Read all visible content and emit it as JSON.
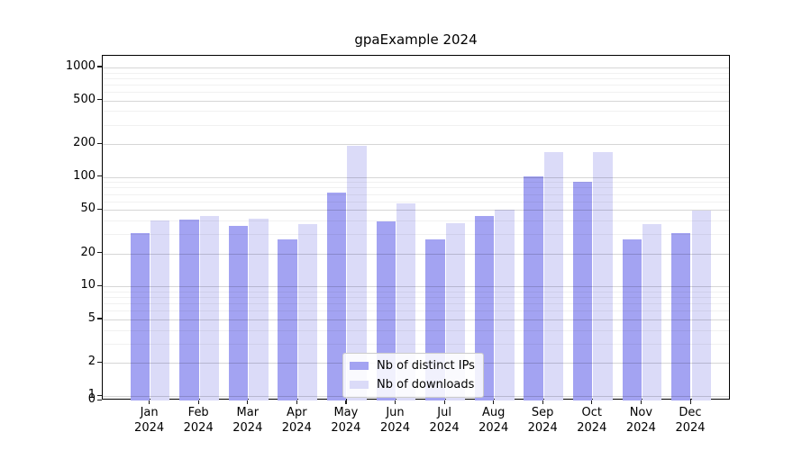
{
  "chart_data": {
    "type": "bar",
    "title": "gpaExample 2024",
    "categories": [
      "Jan 2024",
      "Feb 2024",
      "Mar 2024",
      "Apr 2024",
      "May 2024",
      "Jun 2024",
      "Jul 2024",
      "Aug 2024",
      "Sep 2024",
      "Oct 2024",
      "Nov 2024",
      "Dec 2024"
    ],
    "series": [
      {
        "name": "Nb of distinct IPs",
        "color": "#a3a3f2",
        "values": [
          31,
          41,
          36,
          27,
          72,
          39,
          27,
          44,
          102,
          90,
          27,
          31
        ]
      },
      {
        "name": "Nb of downloads",
        "color": "#dbdbf8",
        "values": [
          40,
          44,
          42,
          37,
          193,
          57,
          38,
          50,
          168,
          168,
          37,
          49
        ]
      }
    ],
    "yscale": "symlog",
    "yticks": [
      0,
      1,
      2,
      5,
      10,
      20,
      50,
      100,
      200,
      500,
      1000
    ],
    "ytick_labels": [
      "0",
      "1",
      "2",
      "5",
      "10",
      "20",
      "50",
      "100",
      "200",
      "500",
      "1000"
    ],
    "minor_gridlines": [
      3,
      4,
      6,
      7,
      8,
      9,
      30,
      40,
      60,
      70,
      80,
      90,
      300,
      400,
      600,
      700,
      800,
      900
    ],
    "ylim": [
      0,
      1280
    ],
    "grid": true,
    "legend_position": "lower center",
    "axis_color": "#000000",
    "major_grid_color": "#d6d6d6",
    "minor_grid_color": "#ededed"
  }
}
